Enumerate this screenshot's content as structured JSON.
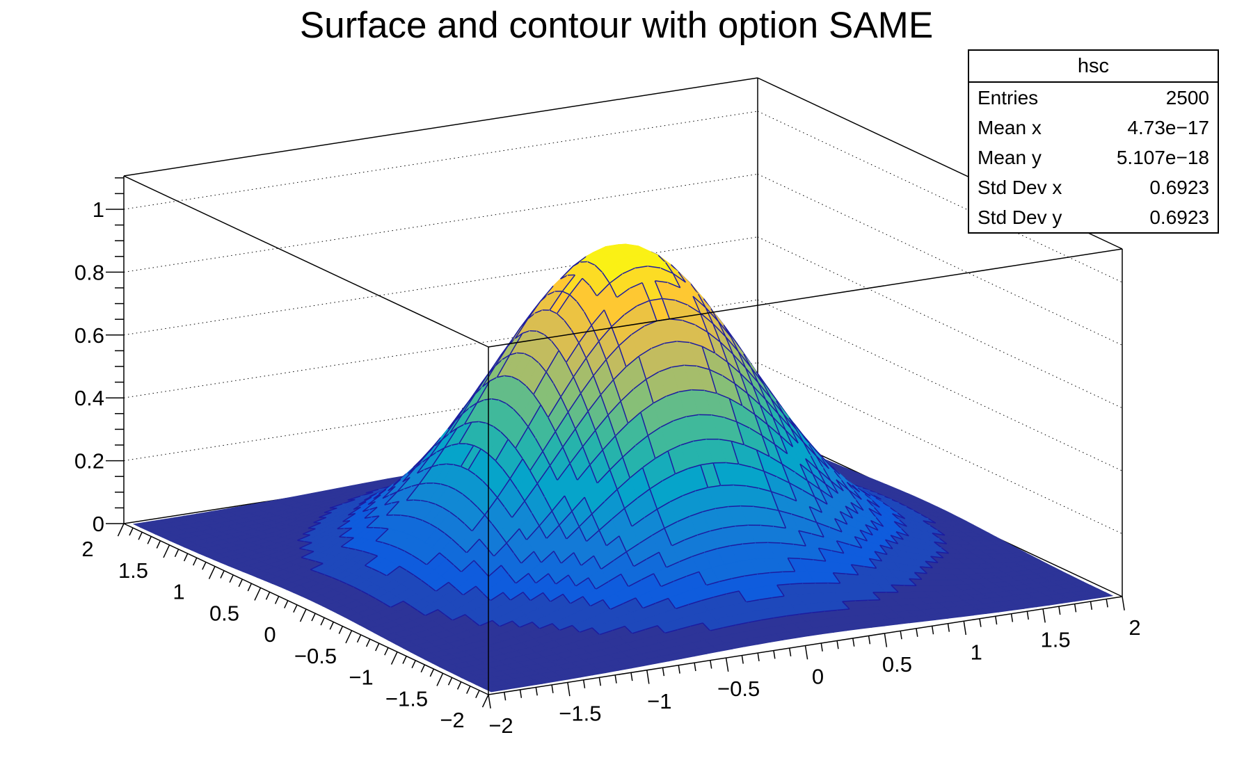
{
  "title": "Surface and contour with option SAME",
  "stats_box": {
    "title": "hsc",
    "rows": [
      {
        "label": "Entries",
        "value": "2500"
      },
      {
        "label": "Mean x",
        "value": "4.73e−17"
      },
      {
        "label": "Mean y",
        "value": "5.107e−18"
      },
      {
        "label": "Std Dev x",
        "value": "0.6923"
      },
      {
        "label": "Std Dev y",
        "value": "0.6923"
      }
    ]
  },
  "chart_data": {
    "type": "surface3d+contour",
    "title": "Surface and contour with option SAME",
    "histogram": {
      "name": "hsc",
      "entries": 2500,
      "mean_x": "4.73e−17",
      "mean_y": "5.107e−18",
      "std_dev_x": 0.6923,
      "std_dev_y": 0.6923,
      "draw_option": "SURF2 with contour drawn SAME"
    },
    "x": {
      "range": [
        -2,
        2
      ],
      "tick_values": [
        -2,
        -1.5,
        -1,
        -0.5,
        0,
        0.5,
        1,
        1.5,
        2
      ],
      "tick_labels": [
        "−2",
        "−1.5",
        "−1",
        "−0.5",
        "0",
        "0.5",
        "1",
        "1.5",
        "2"
      ],
      "minor_step": 0.1
    },
    "y": {
      "range": [
        -2,
        2
      ],
      "tick_values": [
        2,
        1.5,
        1,
        0.5,
        0,
        -0.5,
        -1,
        -1.5,
        -2
      ],
      "tick_labels": [
        "2",
        "1.5",
        "1",
        "0.5",
        "0",
        "−0.5",
        "−1",
        "−1.5",
        "−2"
      ],
      "minor_step": 0.1
    },
    "z": {
      "range": [
        0,
        1
      ],
      "tick_values": [
        0,
        0.2,
        0.4,
        0.6,
        0.8,
        1
      ],
      "tick_labels": [
        "0",
        "0.2",
        "0.4",
        "0.6",
        "0.8",
        "1"
      ],
      "minor_step": 0.05,
      "grid_levels": [
        0.2,
        0.4,
        0.6,
        0.8,
        1
      ]
    },
    "bins": {
      "nx": 50,
      "ny": 50
    },
    "surface_function": {
      "form": "A*exp(-(x^2+y^2)/(2*sigma^2))",
      "A": 1.0,
      "sigma": 0.71
    },
    "contour": {
      "n_levels": 20,
      "line_color": "#1c1ca0"
    },
    "palette": {
      "name": "kBird",
      "stops": [
        "#352a87",
        "#0f5cdd",
        "#1481d6",
        "#06a4ca",
        "#2eb7a4",
        "#87bf77",
        "#d1bb59",
        "#fec832",
        "#f9fb0e"
      ]
    },
    "frame": {
      "line_color": "#000000",
      "grid_style": "dotted"
    },
    "background": "#ffffff"
  }
}
